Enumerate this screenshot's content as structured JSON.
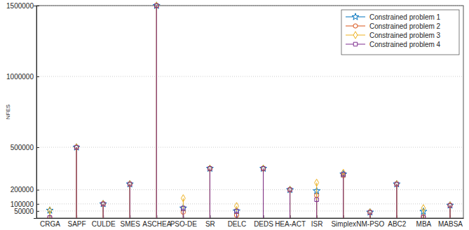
{
  "chart_data": {
    "type": "stem",
    "y_label": "NFES",
    "categories": [
      "CRGA",
      "SAPF",
      "CULDE",
      "SMES",
      "ASCHEA",
      "PSO-DE",
      "SR",
      "DELC",
      "DEDS",
      "HEA-ACT",
      "ISR",
      "Simplex",
      "NM-PSO",
      "ABC2",
      "MBA",
      "MABSA"
    ],
    "series": [
      {
        "name": "Constrained problem 1",
        "color": "#0072bd",
        "marker": "star",
        "values": [
          54400,
          500000,
          100000,
          240000,
          1500000,
          70100,
          350000,
          50000,
          350000,
          200000,
          192000,
          310000,
          41000,
          240000,
          47000,
          90000
        ]
      },
      {
        "name": "Constrained problem 2",
        "color": "#d95319",
        "marker": "circle",
        "values": [
          3700,
          500000,
          100000,
          240000,
          1500000,
          42100,
          350000,
          20000,
          350000,
          200000,
          160000,
          300000,
          41000,
          240000,
          10000,
          90000
        ]
      },
      {
        "name": "Constrained problem 3",
        "color": "#edb120",
        "marker": "diamond",
        "values": [
          54400,
          500000,
          100000,
          240000,
          1500000,
          140100,
          350000,
          85000,
          350000,
          200000,
          250000,
          320000,
          41000,
          240000,
          70000,
          90000
        ]
      },
      {
        "name": "Constrained problem 4",
        "color": "#7e2f8e",
        "marker": "square",
        "values": [
          3700,
          500000,
          100000,
          240000,
          1500000,
          70100,
          350000,
          50000,
          350000,
          200000,
          130000,
          310000,
          41000,
          240000,
          6300,
          90000
        ]
      }
    ],
    "ylim": [
      0,
      1500000
    ],
    "yticks": [
      50000,
      100000,
      200000,
      500000,
      1000000,
      1500000
    ],
    "grid": true,
    "legend": "top-right"
  }
}
